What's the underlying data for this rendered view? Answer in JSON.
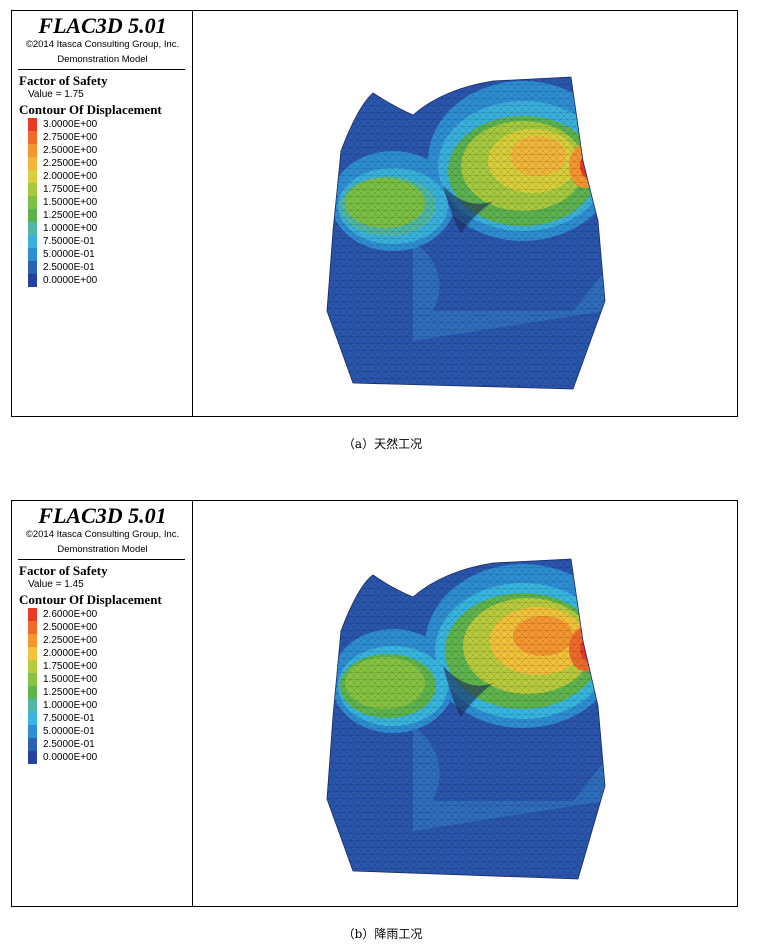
{
  "panels": [
    {
      "title": "FLAC3D 5.01",
      "copyright": "©2014 Itasca Consulting Group, Inc.",
      "model": "Demonstration Model",
      "fos_heading": "Factor of Safety",
      "fos_value": "Value = 1.75",
      "contour_heading": "Contour Of Displacement",
      "levels": [
        "3.0000E+00",
        "2.7500E+00",
        "2.5000E+00",
        "2.2500E+00",
        "2.0000E+00",
        "1.7500E+00",
        "1.5000E+00",
        "1.2500E+00",
        "1.0000E+00",
        "7.5000E-01",
        "5.0000E-01",
        "2.5000E-01",
        "0.0000E+00"
      ],
      "colors": [
        "#e83a24",
        "#f06a2c",
        "#f5962f",
        "#f2b63a",
        "#d9cf3a",
        "#a6c93f",
        "#7bbf44",
        "#5cb24f",
        "#4fb7a3",
        "#3ab1dc",
        "#2e8ed3",
        "#2a62b5",
        "#2642a0"
      ],
      "caption": "（a）天然工况"
    },
    {
      "title": "FLAC3D 5.01",
      "copyright": "©2014 Itasca Consulting Group, Inc.",
      "model": "Demonstration Model",
      "fos_heading": "Factor of Safety",
      "fos_value": "Value = 1.45",
      "contour_heading": "Contour Of Displacement",
      "levels": [
        "2.6000E+00",
        "2.5000E+00",
        "2.2500E+00",
        "2.0000E+00",
        "1.7500E+00",
        "1.5000E+00",
        "1.2500E+00",
        "1.0000E+00",
        "7.5000E-01",
        "5.0000E-01",
        "2.5000E-01",
        "0.0000E+00"
      ],
      "colors": [
        "#e83a24",
        "#f06a2c",
        "#f5962f",
        "#f2c23a",
        "#b8cb3d",
        "#86c342",
        "#5fb44e",
        "#4fb7a3",
        "#38b6df",
        "#2e8ed3",
        "#2a62b5",
        "#2642a0"
      ],
      "caption": "（b）降雨工况"
    }
  ]
}
